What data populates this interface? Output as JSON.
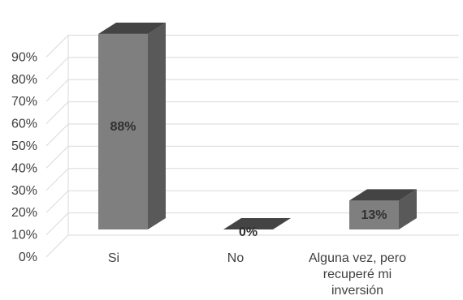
{
  "chart_data": {
    "type": "bar",
    "title": "",
    "xlabel": "",
    "ylabel": "",
    "categories": [
      "Si",
      "No",
      "Alguna vez, pero recuperé mi inversión"
    ],
    "category_label_lines": [
      [
        "Si"
      ],
      [
        "No"
      ],
      [
        "Alguna vez, pero",
        "recuperé mi",
        "inversión"
      ]
    ],
    "values": [
      88,
      0,
      13
    ],
    "data_labels": [
      "88%",
      "0%",
      "13%"
    ],
    "ylim": [
      0,
      90
    ],
    "yticks": [
      0,
      10,
      20,
      30,
      40,
      50,
      60,
      70,
      80,
      90
    ],
    "ytick_labels": [
      "0%",
      "10%",
      "20%",
      "30%",
      "40%",
      "50%",
      "60%",
      "70%",
      "80%",
      "90%"
    ],
    "grid": true,
    "legend": "none",
    "style": "3d-column",
    "colors": {
      "bar_front": "#7f7f7f",
      "bar_top": "#444444",
      "bar_side": "#595959",
      "gridline": "#d9d9d9",
      "text": "#404040",
      "data_label": "#303030"
    }
  }
}
